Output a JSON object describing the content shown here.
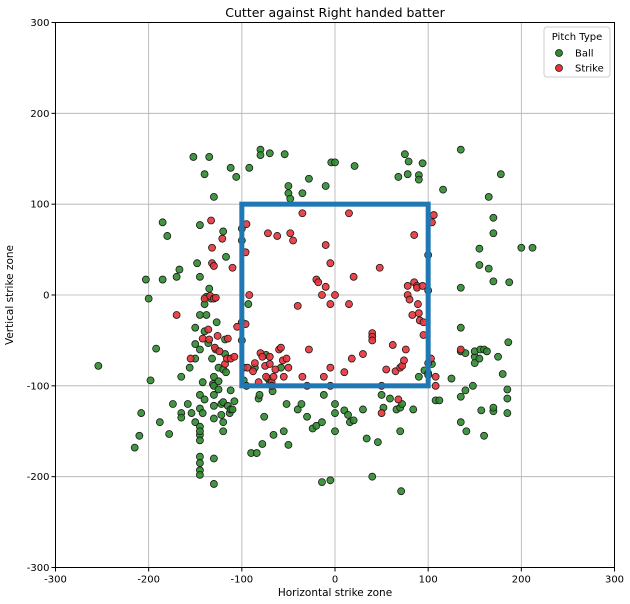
{
  "chart_data": {
    "type": "scatter",
    "title": "Cutter against Right handed batter",
    "xlabel": "Horizontal strike zone",
    "ylabel": "Vertical strike zone",
    "xlim": [
      -300,
      300
    ],
    "ylim": [
      -300,
      300
    ],
    "xticks": [
      -300,
      -200,
      -100,
      0,
      100,
      200,
      300
    ],
    "yticks": [
      -300,
      -200,
      -100,
      0,
      100,
      200,
      300
    ],
    "grid": true,
    "legend": {
      "title": "Pitch Type",
      "position": "top-right"
    },
    "strike_zone": {
      "x": [
        -100,
        100
      ],
      "y": [
        -100,
        100
      ],
      "color": "#1f77b4"
    },
    "series": [
      {
        "name": "Ball",
        "color": "#2e8b2e",
        "points": [
          [
            -254,
            -78
          ],
          [
            -215,
            -168
          ],
          [
            -210,
            -155
          ],
          [
            -208,
            -130
          ],
          [
            -203,
            17
          ],
          [
            -200,
            -4
          ],
          [
            -198,
            -94
          ],
          [
            -192,
            -59
          ],
          [
            -188,
            -140
          ],
          [
            -185,
            80
          ],
          [
            -185,
            17
          ],
          [
            -180,
            65
          ],
          [
            -178,
            -153
          ],
          [
            -174,
            -120
          ],
          [
            -170,
            20
          ],
          [
            -167,
            28
          ],
          [
            -165,
            -130
          ],
          [
            -165,
            -135
          ],
          [
            -165,
            -90
          ],
          [
            -158,
            -120
          ],
          [
            -156,
            -80
          ],
          [
            -154,
            -130
          ],
          [
            -152,
            152
          ],
          [
            -150,
            -140
          ],
          [
            -150,
            -70
          ],
          [
            -150,
            -54
          ],
          [
            -150,
            -36
          ],
          [
            -148,
            35
          ],
          [
            -145,
            -154
          ],
          [
            -145,
            -178
          ],
          [
            -145,
            -185
          ],
          [
            -145,
            -193
          ],
          [
            -145,
            -198
          ],
          [
            -145,
            -110
          ],
          [
            -145,
            -125
          ],
          [
            -145,
            -145
          ],
          [
            -145,
            -150
          ],
          [
            -145,
            -160
          ],
          [
            -145,
            -60
          ],
          [
            -145,
            -22
          ],
          [
            -145,
            20
          ],
          [
            -145,
            77
          ],
          [
            -142,
            -130
          ],
          [
            -142,
            -96
          ],
          [
            -140,
            -40
          ],
          [
            -140,
            -10
          ],
          [
            -140,
            133
          ],
          [
            -140,
            -115
          ],
          [
            -138,
            -22
          ],
          [
            -138,
            -2
          ],
          [
            -136,
            -53
          ],
          [
            -135,
            152
          ],
          [
            -135,
            7
          ],
          [
            -133,
            -4
          ],
          [
            -132,
            -70
          ],
          [
            -131,
            -98
          ],
          [
            -130,
            -90
          ],
          [
            -130,
            -208
          ],
          [
            -130,
            -180
          ],
          [
            -130,
            -136
          ],
          [
            -130,
            -122
          ],
          [
            -130,
            -110
          ],
          [
            -130,
            -100
          ],
          [
            -130,
            108
          ],
          [
            -128,
            -60
          ],
          [
            -127,
            -30
          ],
          [
            -125,
            -80
          ],
          [
            -125,
            -95
          ],
          [
            -125,
            -104
          ],
          [
            -122,
            -120
          ],
          [
            -122,
            -132
          ],
          [
            -120,
            -140
          ],
          [
            -120,
            -150
          ],
          [
            -120,
            -82
          ],
          [
            -120,
            -118
          ],
          [
            -120,
            70
          ],
          [
            -118,
            -65
          ],
          [
            -118,
            -49
          ],
          [
            -117,
            42
          ],
          [
            -117,
            -85
          ],
          [
            -115,
            -122
          ],
          [
            -113,
            -130
          ],
          [
            -112,
            140
          ],
          [
            -112,
            -105
          ],
          [
            -112,
            -126
          ],
          [
            -110,
            -126
          ],
          [
            -108,
            -117
          ],
          [
            -106,
            130
          ],
          [
            -100,
            -50
          ],
          [
            -100,
            -30
          ],
          [
            -100,
            60
          ],
          [
            -100,
            73
          ],
          [
            -98,
            -80
          ],
          [
            -98,
            -94
          ],
          [
            -95,
            -100
          ],
          [
            -93,
            -10
          ],
          [
            -92,
            140
          ],
          [
            -90,
            -174
          ],
          [
            -86,
            -80
          ],
          [
            -84,
            -174
          ],
          [
            -82,
            -114
          ],
          [
            -81,
            -110
          ],
          [
            -80,
            160
          ],
          [
            -80,
            154
          ],
          [
            -78,
            -164
          ],
          [
            -76,
            -134
          ],
          [
            -74,
            -66
          ],
          [
            -72,
            -92
          ],
          [
            -70,
            -98
          ],
          [
            -70,
            156
          ],
          [
            -67,
            -106
          ],
          [
            -66,
            -154
          ],
          [
            -58,
            -80
          ],
          [
            -55,
            -150
          ],
          [
            -54,
            155
          ],
          [
            -52,
            -120
          ],
          [
            -50,
            -165
          ],
          [
            -50,
            120
          ],
          [
            -50,
            112
          ],
          [
            -48,
            106
          ],
          [
            -40,
            -126
          ],
          [
            -36,
            -120
          ],
          [
            -35,
            112
          ],
          [
            -30,
            -134
          ],
          [
            -28,
            128
          ],
          [
            -24,
            -147
          ],
          [
            -20,
            -144
          ],
          [
            -14,
            -140
          ],
          [
            -14,
            -206
          ],
          [
            -12,
            -110
          ],
          [
            -10,
            120
          ],
          [
            -5,
            -204
          ],
          [
            -4,
            146
          ],
          [
            0,
            -120
          ],
          [
            0,
            -130
          ],
          [
            0,
            -150
          ],
          [
            0,
            146
          ],
          [
            10,
            -127
          ],
          [
            14,
            -132
          ],
          [
            16,
            -140
          ],
          [
            20,
            -138
          ],
          [
            21,
            142
          ],
          [
            30,
            -126
          ],
          [
            34,
            -158
          ],
          [
            40,
            -200
          ],
          [
            46,
            -162
          ],
          [
            50,
            -110
          ],
          [
            52,
            -124
          ],
          [
            59,
            -114
          ],
          [
            66,
            -126
          ],
          [
            68,
            130
          ],
          [
            70,
            -124
          ],
          [
            70,
            -150
          ],
          [
            71,
            -216
          ],
          [
            72,
            -120
          ],
          [
            75,
            155
          ],
          [
            78,
            133
          ],
          [
            79,
            147
          ],
          [
            84,
            -126
          ],
          [
            90,
            -90
          ],
          [
            90,
            132
          ],
          [
            90,
            127
          ],
          [
            94,
            145
          ],
          [
            96,
            -83
          ],
          [
            100,
            -86
          ],
          [
            100,
            -88
          ],
          [
            100,
            44
          ],
          [
            100,
            5
          ],
          [
            104,
            -76
          ],
          [
            108,
            -116
          ],
          [
            112,
            -116
          ],
          [
            116,
            116
          ],
          [
            125,
            -92
          ],
          [
            135,
            160
          ],
          [
            135,
            -140
          ],
          [
            135,
            -112
          ],
          [
            135,
            -62
          ],
          [
            135,
            -36
          ],
          [
            135,
            8
          ],
          [
            140,
            -64
          ],
          [
            140,
            -105
          ],
          [
            141,
            -150
          ],
          [
            148,
            -100
          ],
          [
            150,
            -68
          ],
          [
            150,
            -62
          ],
          [
            150,
            -75
          ],
          [
            155,
            -70
          ],
          [
            155,
            51
          ],
          [
            155,
            33
          ],
          [
            156,
            -60
          ],
          [
            157,
            -127
          ],
          [
            160,
            -60
          ],
          [
            160,
            -155
          ],
          [
            163,
            -62
          ],
          [
            165,
            108
          ],
          [
            165,
            29
          ],
          [
            170,
            -128
          ],
          [
            170,
            -124
          ],
          [
            170,
            85
          ],
          [
            170,
            68
          ],
          [
            170,
            15
          ],
          [
            175,
            -68
          ],
          [
            178,
            133
          ],
          [
            180,
            -87
          ],
          [
            185,
            -104
          ],
          [
            185,
            -114
          ],
          [
            185,
            -130
          ],
          [
            186,
            -52
          ],
          [
            187,
            14
          ],
          [
            200,
            52
          ],
          [
            212,
            52
          ]
        ]
      },
      {
        "name": "Strike",
        "color": "#e8333a",
        "points": [
          [
            -170,
            -22
          ],
          [
            -155,
            -70
          ],
          [
            -142,
            -48
          ],
          [
            -140,
            -4
          ],
          [
            -136,
            -38
          ],
          [
            -135,
            -49
          ],
          [
            -134,
            -1
          ],
          [
            -133,
            82
          ],
          [
            -132,
            35
          ],
          [
            -132,
            52
          ],
          [
            -130,
            32
          ],
          [
            -130,
            -4
          ],
          [
            -129,
            -58
          ],
          [
            -128,
            -3
          ],
          [
            -126,
            -45
          ],
          [
            -124,
            -62
          ],
          [
            -121,
            62
          ],
          [
            -118,
            -76
          ],
          [
            -116,
            -70
          ],
          [
            -115,
            -48
          ],
          [
            -112,
            -70
          ],
          [
            -110,
            30
          ],
          [
            -108,
            -68
          ],
          [
            -105,
            -35
          ],
          [
            -96,
            -32
          ],
          [
            -96,
            47
          ],
          [
            -95,
            78
          ],
          [
            -94,
            -80
          ],
          [
            -92,
            0
          ],
          [
            -88,
            -84
          ],
          [
            -86,
            -75
          ],
          [
            -82,
            -96
          ],
          [
            -80,
            -64
          ],
          [
            -78,
            -68
          ],
          [
            -75,
            -78
          ],
          [
            -74,
            -90
          ],
          [
            -72,
            68
          ],
          [
            -70,
            -68
          ],
          [
            -70,
            -76
          ],
          [
            -68,
            -96
          ],
          [
            -68,
            -100
          ],
          [
            -66,
            -90
          ],
          [
            -64,
            -82
          ],
          [
            -62,
            65
          ],
          [
            -60,
            -60
          ],
          [
            -58,
            -58
          ],
          [
            -56,
            -72
          ],
          [
            -55,
            -90
          ],
          [
            -52,
            -70
          ],
          [
            -50,
            -80
          ],
          [
            -48,
            68
          ],
          [
            -45,
            60
          ],
          [
            -40,
            -12
          ],
          [
            -35,
            90
          ],
          [
            -35,
            -90
          ],
          [
            -30,
            -100
          ],
          [
            -28,
            -60
          ],
          [
            -20,
            17
          ],
          [
            -18,
            14
          ],
          [
            -14,
            0
          ],
          [
            -10,
            9
          ],
          [
            -10,
            55
          ],
          [
            -12,
            -90
          ],
          [
            -5,
            -80
          ],
          [
            -5,
            -100
          ],
          [
            -5,
            -10
          ],
          [
            -5,
            35
          ],
          [
            0,
            0
          ],
          [
            10,
            -85
          ],
          [
            15,
            90
          ],
          [
            15,
            -10
          ],
          [
            18,
            -70
          ],
          [
            20,
            20
          ],
          [
            30,
            -65
          ],
          [
            40,
            -42
          ],
          [
            40,
            -46
          ],
          [
            40,
            -50
          ],
          [
            48,
            30
          ],
          [
            50,
            -100
          ],
          [
            50,
            -130
          ],
          [
            55,
            -82
          ],
          [
            62,
            -55
          ],
          [
            65,
            -84
          ],
          [
            68,
            -115
          ],
          [
            70,
            -80
          ],
          [
            72,
            -78
          ],
          [
            74,
            -72
          ],
          [
            76,
            -60
          ],
          [
            78,
            10
          ],
          [
            78,
            0
          ],
          [
            80,
            -5
          ],
          [
            83,
            -22
          ],
          [
            85,
            14
          ],
          [
            85,
            66
          ],
          [
            88,
            10
          ],
          [
            88,
            8
          ],
          [
            89,
            -10
          ],
          [
            90,
            -20
          ],
          [
            91,
            -28
          ],
          [
            94,
            10
          ],
          [
            95,
            -30
          ],
          [
            95,
            -44
          ],
          [
            100,
            -75
          ],
          [
            103,
            -70
          ],
          [
            104,
            80
          ],
          [
            106,
            88
          ],
          [
            108,
            -100
          ],
          [
            108,
            -90
          ],
          [
            135,
            -60
          ]
        ]
      }
    ]
  }
}
